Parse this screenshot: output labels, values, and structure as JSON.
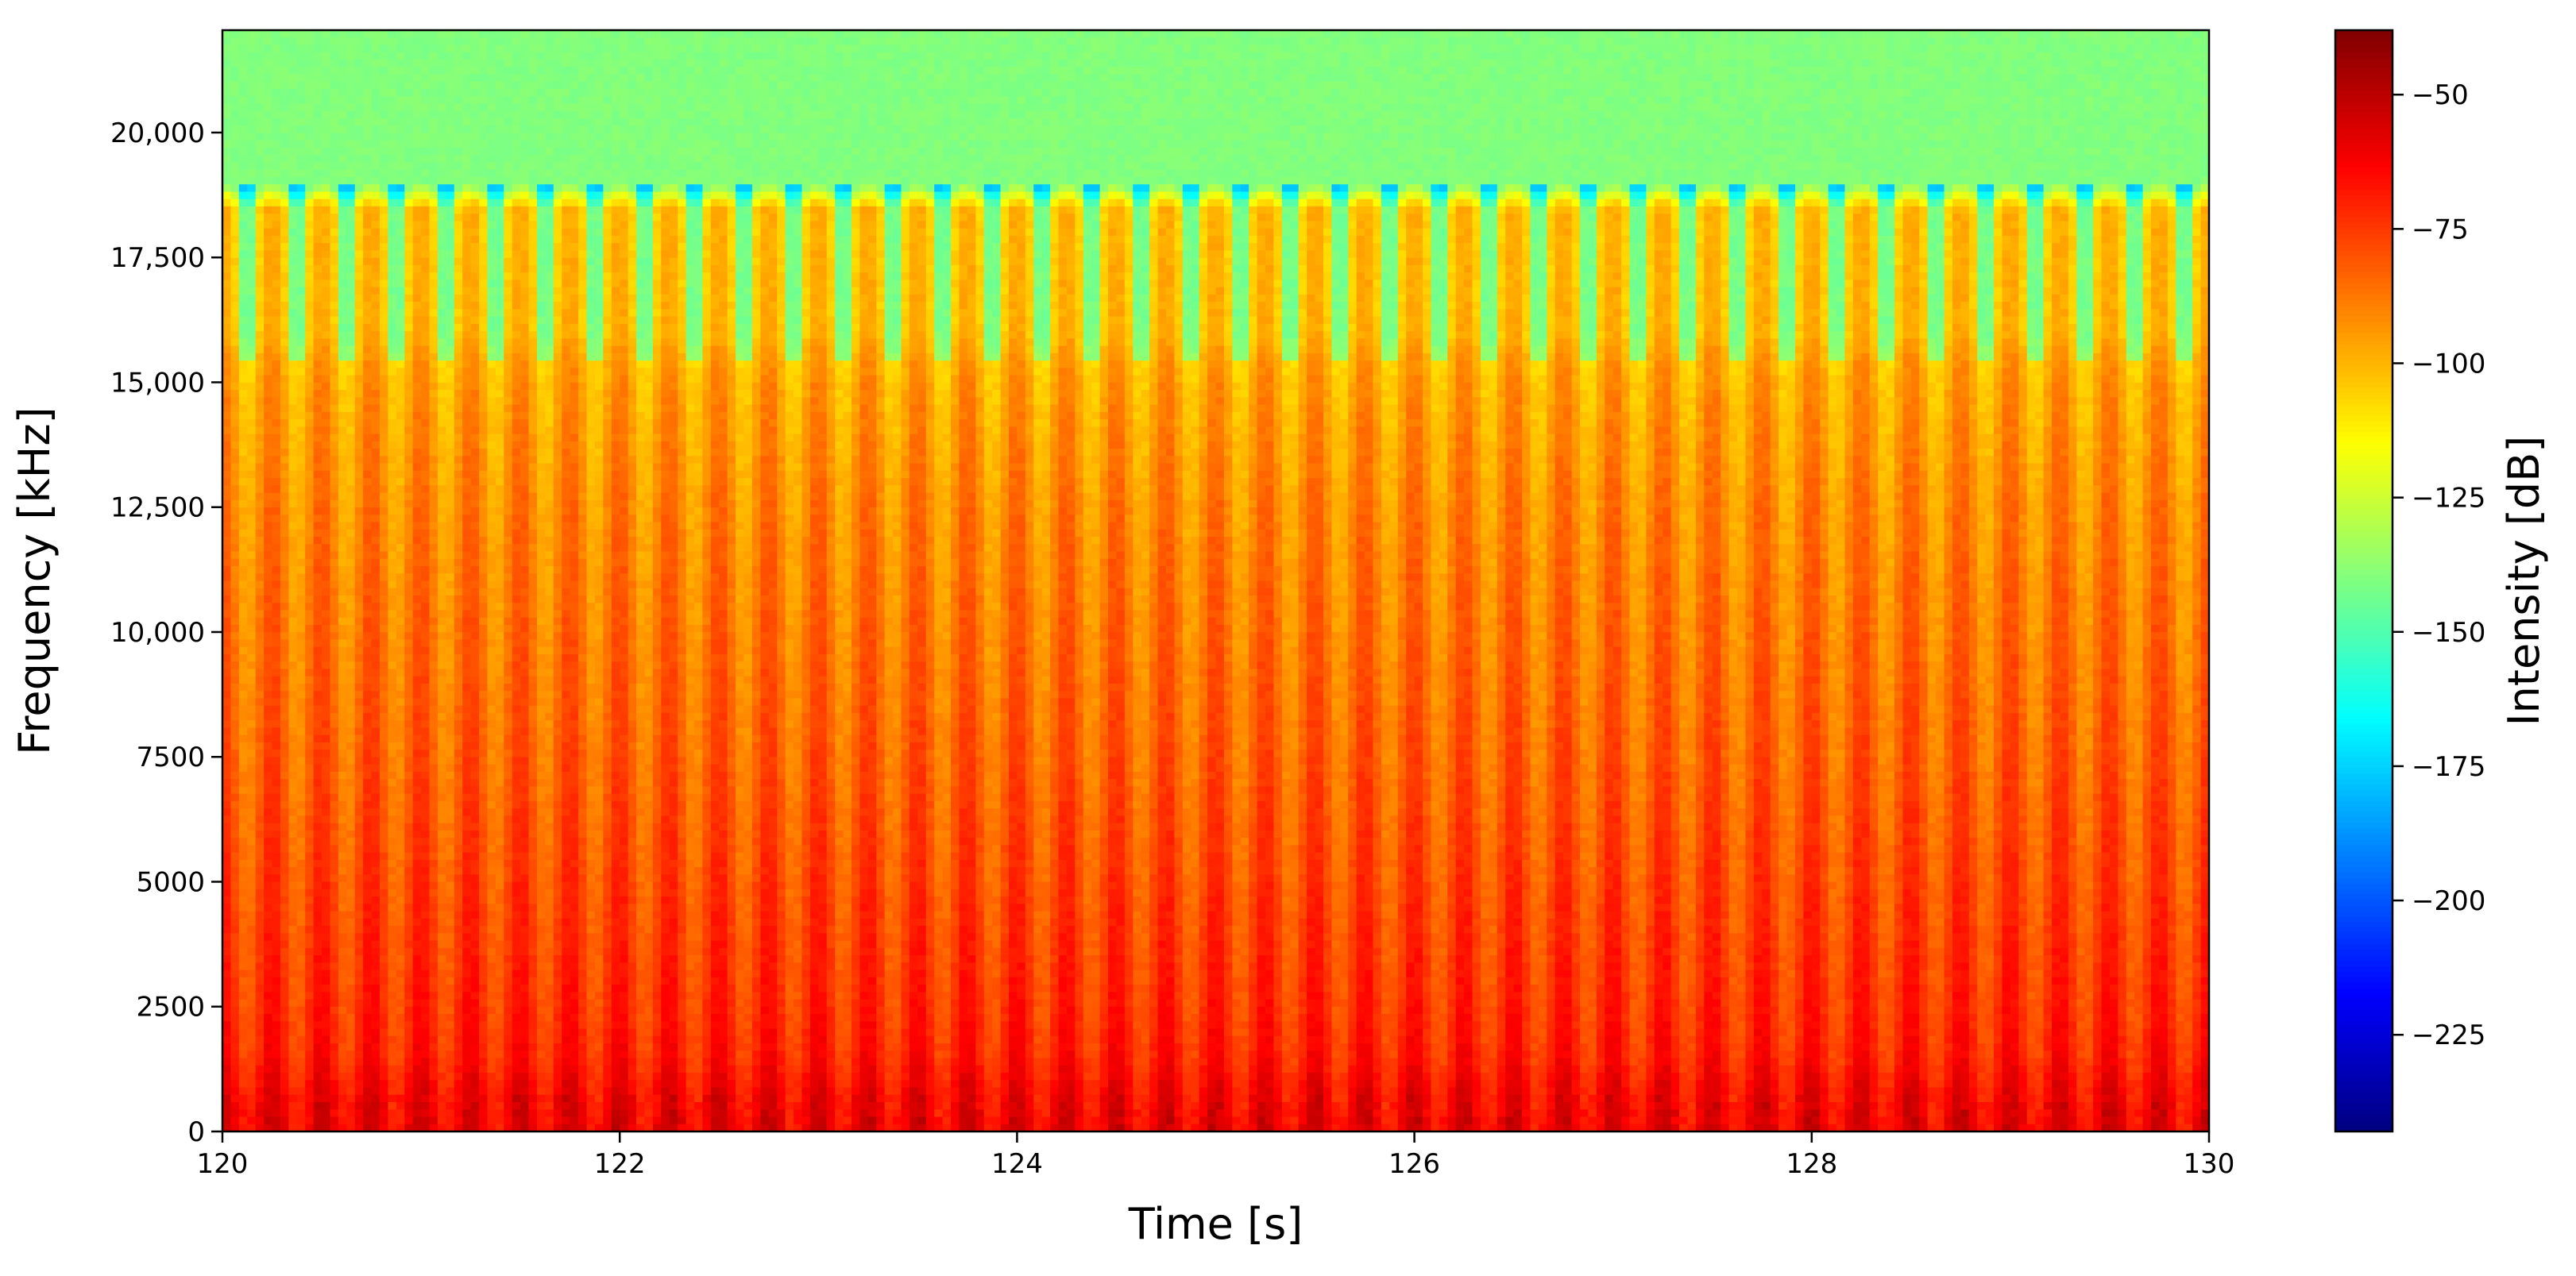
{
  "chart_data": {
    "type": "heatmap",
    "title": "",
    "xlabel": "Time [s]",
    "ylabel": "Frequency [kHz]",
    "xlim": [
      120,
      130
    ],
    "ylim": [
      0,
      22050
    ],
    "x_ticks": [
      {
        "value": 120,
        "label": "120"
      },
      {
        "value": 122,
        "label": "122"
      },
      {
        "value": 124,
        "label": "124"
      },
      {
        "value": 126,
        "label": "126"
      },
      {
        "value": 128,
        "label": "128"
      },
      {
        "value": 130,
        "label": "130"
      }
    ],
    "y_ticks": [
      {
        "value": 0,
        "label": "0"
      },
      {
        "value": 2500,
        "label": "2500"
      },
      {
        "value": 5000,
        "label": "5000"
      },
      {
        "value": 7500,
        "label": "7500"
      },
      {
        "value": 10000,
        "label": "10,000"
      },
      {
        "value": 12500,
        "label": "12,500"
      },
      {
        "value": 15000,
        "label": "15,000"
      },
      {
        "value": 17500,
        "label": "17,500"
      },
      {
        "value": 20000,
        "label": "20,000"
      }
    ],
    "colorbar": {
      "label": "Intensity [dB]",
      "colormap": "jet",
      "range": [
        -243,
        -38
      ],
      "ticks": [
        {
          "value": -50,
          "label": "−50"
        },
        {
          "value": -75,
          "label": "−75"
        },
        {
          "value": -100,
          "label": "−100"
        },
        {
          "value": -125,
          "label": "−125"
        },
        {
          "value": -150,
          "label": "−150"
        },
        {
          "value": -175,
          "label": "−175"
        },
        {
          "value": -200,
          "label": "−200"
        },
        {
          "value": -225,
          "label": "−225"
        }
      ]
    },
    "intensity_profile": {
      "freq_hz": [
        0,
        700,
        1500,
        2500,
        5000,
        7500,
        10000,
        12500,
        15000,
        15500,
        16000,
        18500,
        18900,
        22050
      ],
      "intensity_db": [
        -60,
        -63,
        -70,
        -73,
        -78,
        -83,
        -87,
        -91,
        -97,
        -100,
        -105,
        -106,
        -140,
        -140
      ]
    },
    "pulse_count": 40
  }
}
